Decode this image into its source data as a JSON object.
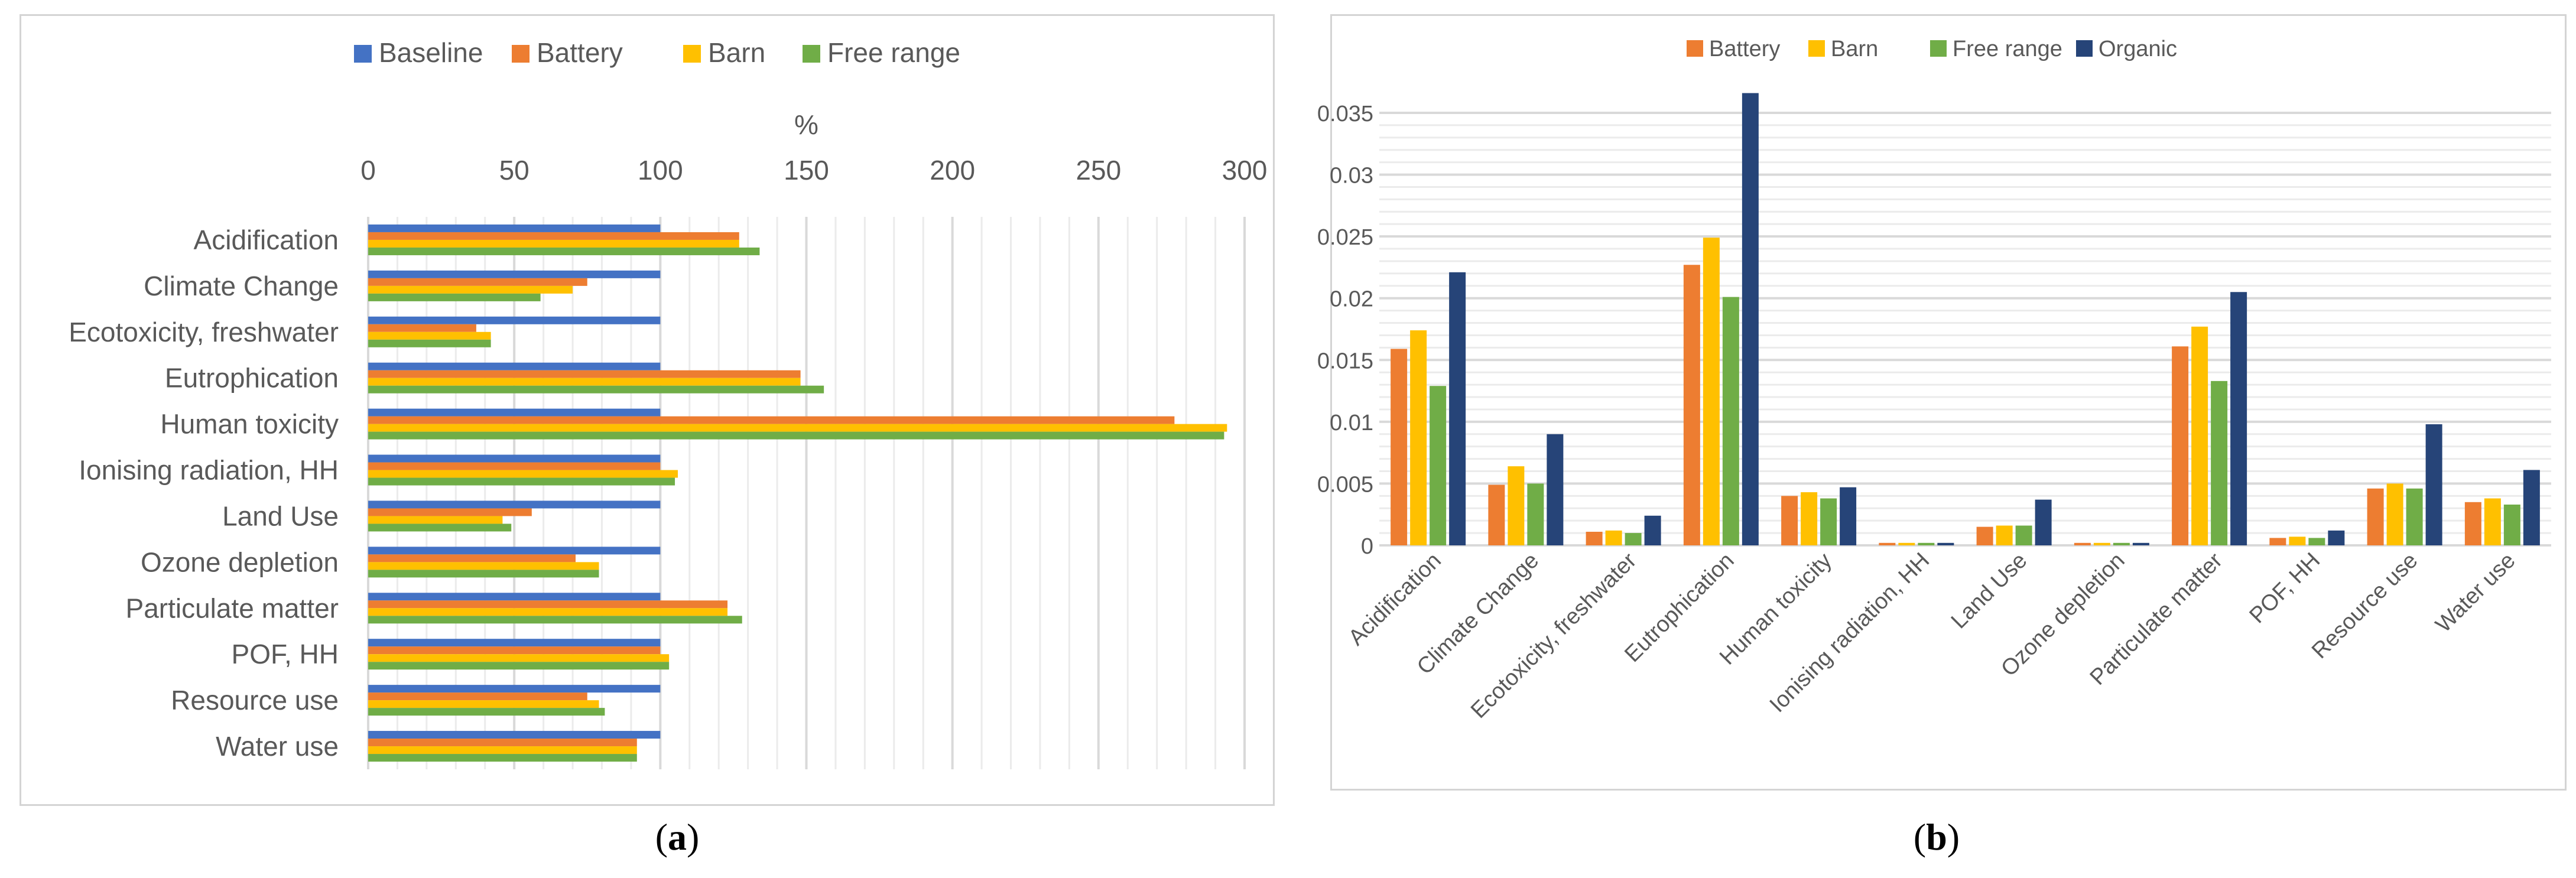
{
  "colors": {
    "baseline": "#4472C4",
    "battery": "#ED7D31",
    "barn": "#FFC000",
    "free_range": "#70AD47",
    "organic": "#264478",
    "grid": "#d9d9d9",
    "axis_text": "#595959"
  },
  "captions": {
    "a_open": "(",
    "a_letter": "a",
    "a_close": ")",
    "b_open": "(",
    "b_letter": "b",
    "b_close": ")"
  },
  "chart_data": [
    {
      "id": "a",
      "type": "bar",
      "orientation": "horizontal",
      "xlabel": "%",
      "xlim": [
        0,
        300
      ],
      "xticks": [
        0,
        50,
        100,
        150,
        200,
        250,
        300
      ],
      "minor_gridlines": true,
      "legend_position": "top",
      "categories": [
        "Acidification",
        "Climate Change",
        "Ecotoxicity, freshwater",
        "Eutrophication",
        "Human toxicity",
        "Ionising radiation, HH",
        "Land Use",
        "Ozone depletion",
        "Particulate matter",
        "POF, HH",
        "Resource use",
        "Water use"
      ],
      "series": [
        {
          "name": "Baseline",
          "color_key": "baseline",
          "values": [
            100,
            100,
            100,
            100,
            100,
            100,
            100,
            100,
            100,
            100,
            100,
            100
          ]
        },
        {
          "name": "Battery",
          "color_key": "battery",
          "values": [
            127,
            75,
            37,
            148,
            276,
            100,
            56,
            71,
            123,
            100,
            75,
            92
          ]
        },
        {
          "name": "Barn",
          "color_key": "barn",
          "values": [
            127,
            70,
            42,
            148,
            294,
            106,
            46,
            79,
            123,
            103,
            79,
            92
          ]
        },
        {
          "name": "Free range",
          "color_key": "free_range",
          "values": [
            134,
            59,
            42,
            156,
            293,
            105,
            49,
            79,
            128,
            103,
            81,
            92
          ]
        }
      ]
    },
    {
      "id": "b",
      "type": "bar",
      "orientation": "vertical",
      "ylim": [
        0,
        0.035
      ],
      "yticks": [
        "0",
        "0.005",
        "0.01",
        "0.015",
        "0.02",
        "0.025",
        "0.03",
        "0.035"
      ],
      "minor_gridlines": true,
      "legend_position": "top",
      "categories": [
        "Acidification",
        "Climate Change",
        "Ecotoxicity, freshwater",
        "Eutrophication",
        "Human toxicity",
        "Ionising radiation, HH",
        "Land Use",
        "Ozone depletion",
        "Particulate matter",
        "POF, HH",
        "Resource use",
        "Water use"
      ],
      "series": [
        {
          "name": "Battery",
          "color_key": "battery",
          "values": [
            0.0159,
            0.0049,
            0.0011,
            0.0227,
            0.004,
            0.0002,
            0.0015,
            0.0002,
            0.0161,
            0.0006,
            0.0046,
            0.0035
          ]
        },
        {
          "name": "Barn",
          "color_key": "barn",
          "values": [
            0.0174,
            0.0064,
            0.0012,
            0.0249,
            0.0043,
            0.0002,
            0.0016,
            0.0002,
            0.0177,
            0.0007,
            0.005,
            0.0038
          ]
        },
        {
          "name": "Free range",
          "color_key": "free_range",
          "values": [
            0.0129,
            0.005,
            0.001,
            0.0201,
            0.0038,
            0.0002,
            0.0016,
            0.0002,
            0.0133,
            0.0006,
            0.0046,
            0.0033
          ]
        },
        {
          "name": "Organic",
          "color_key": "organic",
          "values": [
            0.0221,
            0.009,
            0.0024,
            0.0366,
            0.0047,
            0.0002,
            0.0037,
            0.0002,
            0.0205,
            0.0012,
            0.0098,
            0.0061
          ]
        }
      ]
    }
  ]
}
